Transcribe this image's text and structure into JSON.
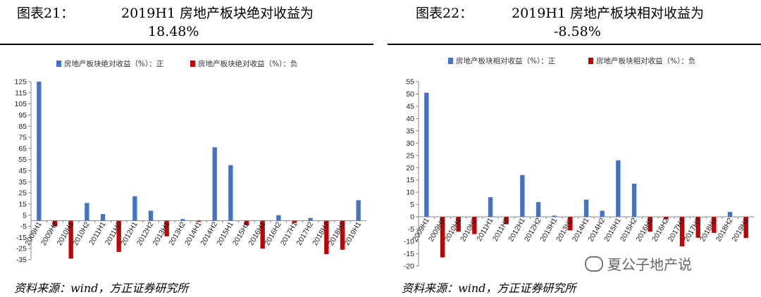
{
  "panels": [
    {
      "title_label": "图表21：",
      "title_text": "2019H1 房地产板块绝对收益为",
      "title_value": "18.48%",
      "source": "资料来源：wind，方正证券研究所"
    },
    {
      "title_label": "图表22：",
      "title_text": "2019H1 房地产板块相对收益为",
      "title_value": "-8.58%",
      "source": "资料来源：wind，方正证券研究所"
    }
  ],
  "watermark": "夏公子地产说",
  "colors": {
    "positive": "#4472C4",
    "negative": "#C00000"
  },
  "chart_data": [
    {
      "type": "bar",
      "categories": [
        "2009H1",
        "2009H2",
        "2010H1",
        "2010H2",
        "2011H1",
        "2011H2",
        "2012H1",
        "2012H2",
        "2013H1",
        "2013H2",
        "2014H1",
        "2014H2",
        "2015H1",
        "2015H2",
        "2016H1",
        "2016H2",
        "2017H1",
        "2017H2",
        "2018H1",
        "2018H2",
        "2019H1"
      ],
      "series": [
        {
          "name": "房地产板块绝对收益（%）：正",
          "color": "#4472C4",
          "values": [
            125,
            null,
            null,
            16,
            6,
            null,
            22,
            9,
            null,
            1.5,
            null,
            66,
            50,
            null,
            null,
            5,
            null,
            2.5,
            null,
            null,
            18.48
          ]
        },
        {
          "name": "房地产板块绝对收益（%）：负",
          "color": "#C00000",
          "values": [
            null,
            -5,
            -34,
            null,
            null,
            -28,
            null,
            null,
            -14,
            null,
            -1,
            null,
            null,
            -4,
            -25,
            null,
            -2,
            null,
            -30,
            -26,
            null
          ]
        }
      ],
      "ylim": [
        -35,
        125
      ],
      "yticks": [
        -35,
        -25,
        -15,
        -5,
        5,
        15,
        25,
        35,
        45,
        55,
        65,
        75,
        85,
        95,
        105,
        115,
        125
      ]
    },
    {
      "type": "bar",
      "categories": [
        "2009H1",
        "2009H2",
        "2010H1",
        "2010H2",
        "2011H1",
        "2011H2",
        "2012H1",
        "2012H2",
        "2013H1",
        "2013H2",
        "2014H1",
        "2014H2",
        "2015H1",
        "2015H2",
        "2016H1",
        "2016H2",
        "2017H1",
        "2017H2",
        "2018H1",
        "2018H2",
        "2019H1"
      ],
      "series": [
        {
          "name": "房地产板块相对收益（%）：正",
          "color": "#4472C4",
          "values": [
            50.5,
            null,
            null,
            null,
            8,
            null,
            17,
            6,
            0.5,
            null,
            7,
            2.5,
            23,
            13.5,
            null,
            null,
            null,
            null,
            null,
            2,
            null
          ]
        },
        {
          "name": "房地产板块相对收益（%）：负",
          "color": "#C00000",
          "values": [
            null,
            -16.5,
            -6,
            -7,
            null,
            -3,
            null,
            null,
            null,
            -5.5,
            null,
            null,
            null,
            null,
            -6,
            -1,
            -12,
            -8.5,
            -6.5,
            null,
            -8.58
          ]
        }
      ],
      "ylim": [
        -20,
        55
      ],
      "yticks": [
        -20,
        -15,
        -10,
        -5,
        0,
        5,
        10,
        15,
        20,
        25,
        30,
        35,
        40,
        45,
        50,
        55
      ]
    }
  ]
}
